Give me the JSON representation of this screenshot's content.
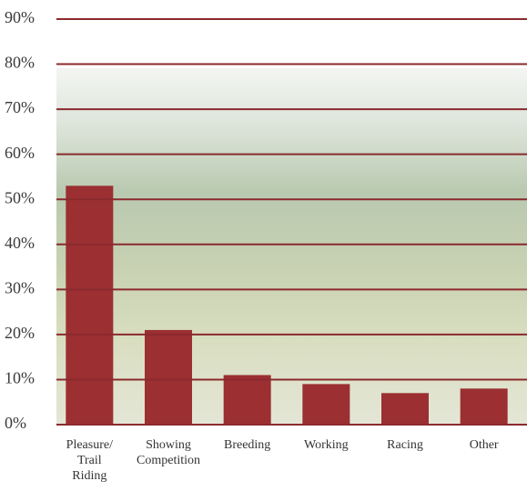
{
  "chart_data": {
    "type": "bar",
    "categories": [
      "Pleasure/ Trail Riding",
      "Showing Competition",
      "Breeding",
      "Working",
      "Racing",
      "Other"
    ],
    "values": [
      53,
      21,
      11,
      9,
      7,
      8
    ],
    "color": "#9b2f31",
    "ylim": [
      0,
      90
    ],
    "yticks": [
      {
        "value": 0,
        "label": "0%"
      },
      {
        "value": 10,
        "label": "10%"
      },
      {
        "value": 20,
        "label": "20%"
      },
      {
        "value": 30,
        "label": "30%"
      },
      {
        "value": 40,
        "label": "40%"
      },
      {
        "value": 50,
        "label": "50%"
      },
      {
        "value": 60,
        "label": "60%"
      },
      {
        "value": 70,
        "label": "70%"
      },
      {
        "value": 80,
        "label": "80%"
      },
      {
        "value": 90,
        "label": "90%"
      }
    ],
    "grid": true,
    "grid_color": "#8b2a2e"
  }
}
